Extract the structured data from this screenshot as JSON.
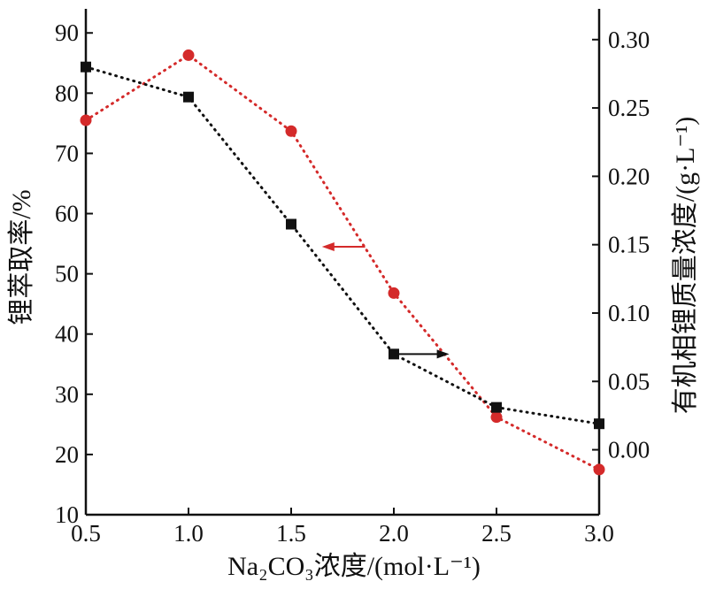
{
  "chart_data": {
    "type": "line",
    "xlabel": "Na₂CO₃浓度/(mol·L⁻¹)",
    "ylabel_left": "锂萃取率/%",
    "ylabel_right": "有机相锂质量浓度/(g·L⁻¹)",
    "x_ticks": [
      "0.5",
      "1.0",
      "1.5",
      "2.0",
      "2.5",
      "3.0"
    ],
    "x_tick_values": [
      0.5,
      1.0,
      1.5,
      2.0,
      2.5,
      3.0
    ],
    "y_left_ticks": [
      "10",
      "20",
      "30",
      "40",
      "50",
      "60",
      "70",
      "80",
      "90"
    ],
    "y_left_tick_values": [
      10,
      20,
      30,
      40,
      50,
      60,
      70,
      80,
      90
    ],
    "y_right_ticks": [
      "0.00",
      "0.05",
      "0.10",
      "0.15",
      "0.20",
      "0.25",
      "0.30"
    ],
    "y_right_tick_values": [
      0.0,
      0.05,
      0.1,
      0.15,
      0.2,
      0.25,
      0.3
    ],
    "xlim": [
      0.5,
      3.0
    ],
    "ylim_left": [
      10,
      94
    ],
    "ylim_right": [
      -0.0475,
      0.3225
    ],
    "grid": false,
    "series": [
      {
        "axis": "left",
        "marker": "circle",
        "color": "#d42a2a",
        "line_style": "dotted",
        "x": [
          0.5,
          1.0,
          1.5,
          2.0,
          2.5,
          3.0
        ],
        "y": [
          75.5,
          86.3,
          73.7,
          46.8,
          26.2,
          17.5
        ]
      },
      {
        "axis": "right",
        "marker": "square",
        "color": "#111111",
        "line_style": "dotted",
        "x": [
          0.5,
          1.0,
          1.5,
          2.0,
          2.5,
          3.0
        ],
        "y": [
          0.28,
          0.258,
          0.165,
          0.07,
          0.031,
          0.019
        ]
      }
    ],
    "annotations": [
      {
        "type": "arrow",
        "direction": "left",
        "color": "#d42a2a",
        "points_to": "left axis"
      },
      {
        "type": "arrow",
        "direction": "right",
        "color": "#111111",
        "points_to": "right axis"
      }
    ]
  }
}
